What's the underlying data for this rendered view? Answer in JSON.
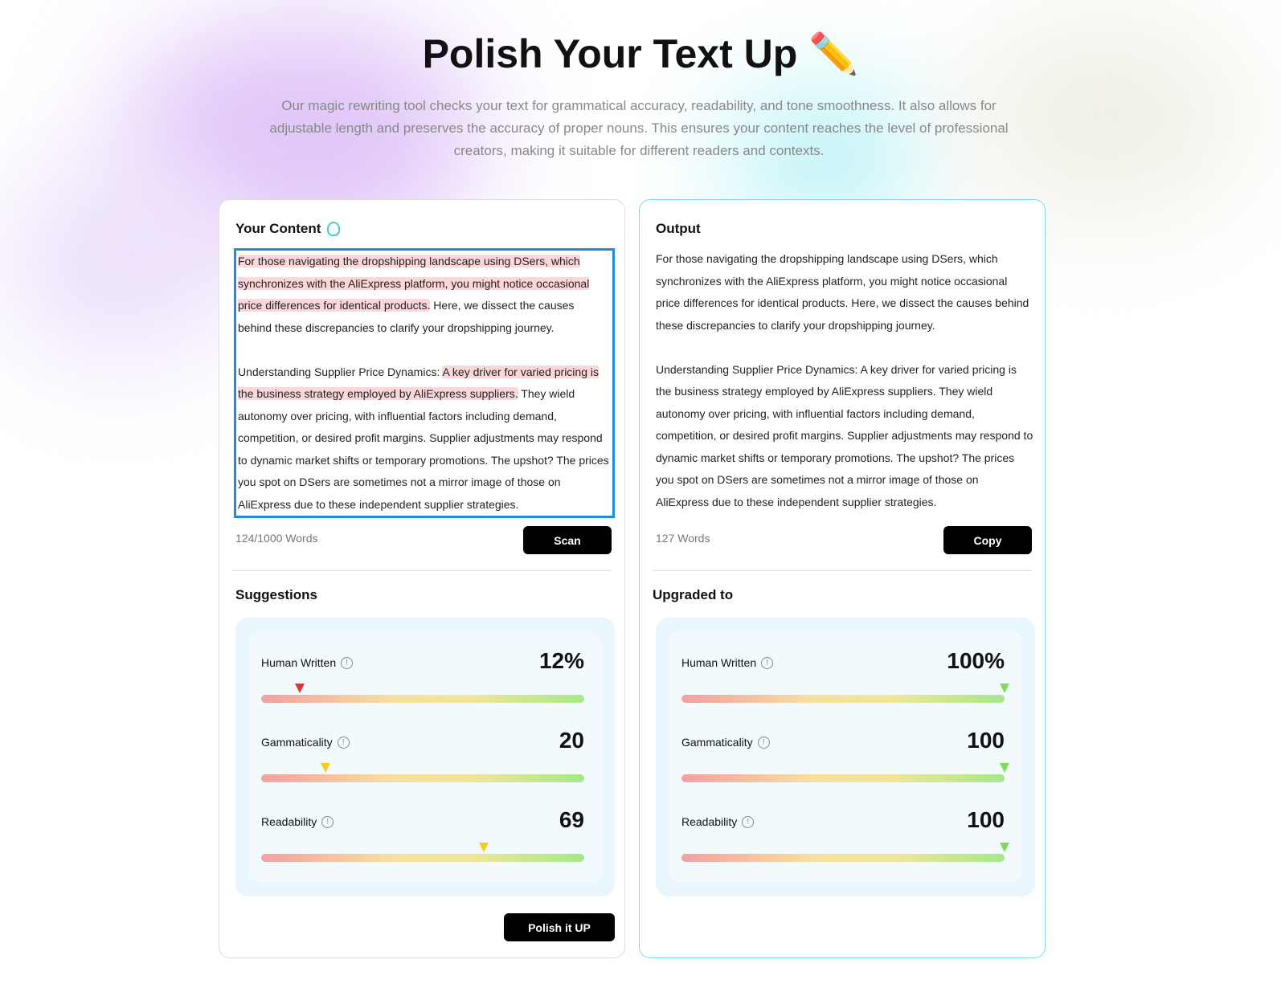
{
  "header": {
    "title": "Polish Your Text Up ✏️",
    "subtitle": "Our magic rewriting tool checks your text for grammatical accuracy, readability, and tone smoothness. It also allows for adjustable length and preserves the accuracy of proper nouns. This ensures your content reaches the level of professional creators, making it suitable for different readers and contexts."
  },
  "input": {
    "title": "Your Content",
    "p1_hl": "For those navigating the dropshipping landscape using DSers, which synchronizes with the AliExpress platform, you might notice occasional price differences for identical products.",
    "p1_rest": " Here, we dissect the causes behind these discrepancies to clarify your dropshipping journey.",
    "p2_pre": "Understanding Supplier Price Dynamics: ",
    "p2_hl": "A key driver for varied pricing is the business strategy employed by AliExpress suppliers.",
    "p2_rest": " They wield autonomy over pricing, with influential factors including demand, competition, or desired profit margins. Supplier adjustments may respond to dynamic market shifts or temporary promotions. The upshot? The prices you spot on DSers are sometimes not a mirror image of those on AliExpress due to these independent supplier strategies.",
    "word_count": "124/1000 Words",
    "scan_label": "Scan",
    "suggestions_title": "Suggestions",
    "polish_label": "Polish it UP",
    "metrics": [
      {
        "label": "Human Written",
        "value": "12%",
        "level": 12,
        "marker_color": "#e8322b"
      },
      {
        "label": "Gammaticality",
        "value": "20",
        "level": 20,
        "marker_color": "#f5cc1c"
      },
      {
        "label": "Readability",
        "value": "69",
        "level": 69,
        "marker_color": "#f5cc1c"
      }
    ]
  },
  "output": {
    "title": "Output",
    "p1": "For those navigating the dropshipping landscape using DSers, which synchronizes with the AliExpress platform, you might notice occasional price differences for identical products. Here, we dissect the causes behind these discrepancies to clarify your dropshipping journey.",
    "p2": "Understanding Supplier Price Dynamics: A key driver for varied pricing is the business strategy employed by AliExpress suppliers. They wield autonomy over pricing, with influential factors including demand, competition, or desired profit margins. Supplier adjustments may respond to dynamic market shifts or temporary promotions. The upshot? The prices you spot on DSers are sometimes not a mirror image of those on AliExpress due to these independent supplier strategies.",
    "word_count": "127 Words",
    "copy_label": "Copy",
    "upgraded_title": "Upgraded to",
    "metrics": [
      {
        "label": "Human Written",
        "value": "100%",
        "level": 100,
        "marker_color": "#7ddc55"
      },
      {
        "label": "Gammaticality",
        "value": "100",
        "level": 100,
        "marker_color": "#7ddc55"
      },
      {
        "label": "Readability",
        "value": "100",
        "level": 100,
        "marker_color": "#7ddc55"
      }
    ]
  }
}
